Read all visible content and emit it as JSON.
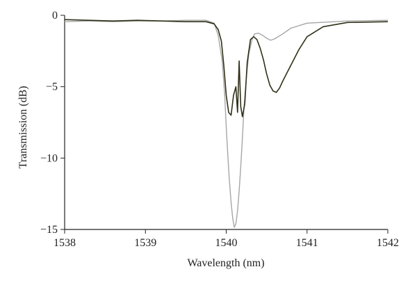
{
  "chart_data": {
    "type": "line",
    "xlabel": "Wavelength (nm)",
    "ylabel": "Transmission (dB)",
    "xlim": [
      1538,
      1542
    ],
    "ylim": [
      -15,
      0
    ],
    "x_ticks": [
      1538,
      1539,
      1540,
      1541,
      1542
    ],
    "y_ticks": [
      0,
      -5,
      -10,
      -15
    ],
    "x_tick_labels": [
      "1538",
      "1539",
      "1540",
      "1541",
      "1542"
    ],
    "y_tick_labels": [
      "0",
      "−5",
      "−10",
      "−15"
    ],
    "grid": false,
    "legend": "none",
    "series": [
      {
        "color": "#a6a6a6",
        "x": [
          1538.0,
          1538.3,
          1538.6,
          1538.9,
          1539.2,
          1539.5,
          1539.75,
          1539.85,
          1539.9,
          1539.95,
          1539.98,
          1540.0,
          1540.02,
          1540.04,
          1540.06,
          1540.08,
          1540.1,
          1540.12,
          1540.14,
          1540.16,
          1540.18,
          1540.2,
          1540.22,
          1540.25,
          1540.28,
          1540.32,
          1540.35,
          1540.4,
          1540.45,
          1540.5,
          1540.55,
          1540.6,
          1540.7,
          1540.8,
          1541.0,
          1541.5,
          1542.0
        ],
        "y": [
          -0.45,
          -0.4,
          -0.45,
          -0.4,
          -0.4,
          -0.35,
          -0.35,
          -0.55,
          -1.4,
          -3.2,
          -5.5,
          -7.8,
          -9.8,
          -11.6,
          -13.1,
          -14.2,
          -14.85,
          -14.6,
          -13.7,
          -12.3,
          -10.6,
          -8.6,
          -6.4,
          -4.3,
          -2.7,
          -1.7,
          -1.3,
          -1.25,
          -1.4,
          -1.6,
          -1.75,
          -1.65,
          -1.3,
          -0.9,
          -0.55,
          -0.4,
          -0.35
        ]
      },
      {
        "color": "#2f2f18",
        "x": [
          1538.0,
          1538.3,
          1538.6,
          1538.9,
          1539.2,
          1539.5,
          1539.75,
          1539.85,
          1539.9,
          1539.94,
          1539.97,
          1540.0,
          1540.03,
          1540.06,
          1540.09,
          1540.12,
          1540.14,
          1540.16,
          1540.18,
          1540.2,
          1540.23,
          1540.26,
          1540.3,
          1540.34,
          1540.38,
          1540.42,
          1540.46,
          1540.5,
          1540.54,
          1540.58,
          1540.62,
          1540.66,
          1540.7,
          1540.8,
          1540.9,
          1541.0,
          1541.2,
          1541.5,
          1542.0
        ],
        "y": [
          -0.3,
          -0.35,
          -0.4,
          -0.35,
          -0.4,
          -0.45,
          -0.45,
          -0.6,
          -1.0,
          -1.8,
          -3.5,
          -5.6,
          -6.8,
          -7.0,
          -5.6,
          -5.0,
          -6.8,
          -3.2,
          -6.4,
          -7.1,
          -6.2,
          -3.3,
          -1.7,
          -1.5,
          -1.7,
          -2.3,
          -3.1,
          -4.1,
          -4.9,
          -5.3,
          -5.4,
          -5.1,
          -4.6,
          -3.5,
          -2.4,
          -1.5,
          -0.8,
          -0.5,
          -0.45
        ]
      }
    ]
  }
}
